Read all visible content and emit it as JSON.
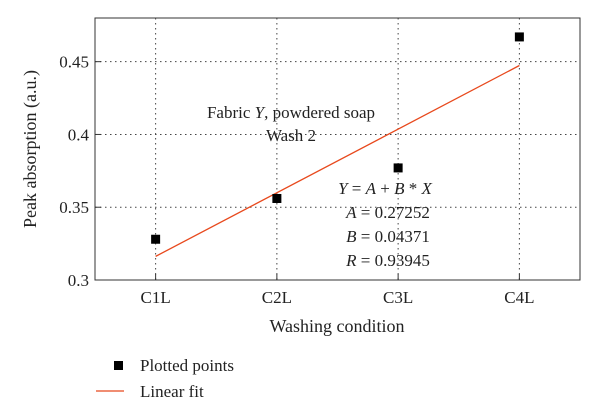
{
  "chart_data": {
    "type": "scatter",
    "categories": [
      "C1L",
      "C2L",
      "C3L",
      "C4L"
    ],
    "x": [
      1,
      2,
      3,
      4
    ],
    "series": [
      {
        "name": "Plotted points",
        "kind": "points",
        "values": [
          0.328,
          0.356,
          0.377,
          0.467
        ],
        "color": "#000000"
      },
      {
        "name": "Linear fit",
        "kind": "line",
        "intercept": 0.27252,
        "slope": 0.04371,
        "color": "#e8491d"
      }
    ],
    "xlabel": "Washing condition",
    "ylabel": "Peak absorption (a.u.)",
    "xlim": [
      0.5,
      4.5
    ],
    "ylim": [
      0.3,
      0.48
    ],
    "yticks": [
      0.3,
      0.35,
      0.4,
      0.45
    ],
    "ytick_labels": [
      "0.3",
      "0.35",
      "0.4",
      "0.45"
    ],
    "grid": true,
    "legend_position": "bottom-left",
    "annotations": {
      "sample_line1_pre": "Fabric ",
      "sample_line1_var": "Y",
      "sample_line1_post": ", powdered soap",
      "sample_line2": "Wash 2",
      "eq_Y": "Y",
      "eq_A": "A",
      "eq_B": "B",
      "eq_X": "X",
      "eq_equals": " = ",
      "eq_plus": " + ",
      "eq_times": " * ",
      "A_label": "A",
      "A_value": " = 0.27252",
      "B_label": "B",
      "B_value": " = 0.04371",
      "R_label": "R",
      "R_value": " = 0.93945"
    }
  }
}
